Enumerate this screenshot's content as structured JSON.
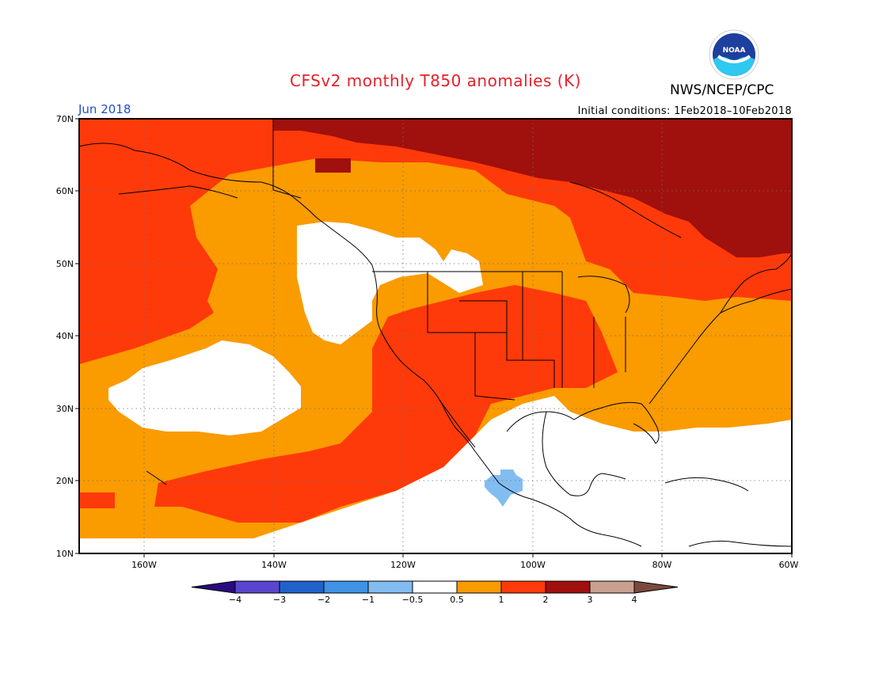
{
  "header": {
    "title": "CFSv2 monthly T850 anomalies (K)",
    "agency": "NWS/NCEP/CPC",
    "period": "Jun 2018",
    "initial_conditions": "Initial conditions: 1Feb2018–10Feb2018",
    "logo_text": "NOAA"
  },
  "axes": {
    "lat_ticks": [
      "70N",
      "60N",
      "50N",
      "40N",
      "30N",
      "20N",
      "10N"
    ],
    "lon_ticks": [
      "160W",
      "140W",
      "120W",
      "100W",
      "80W",
      "60W"
    ]
  },
  "colorbar": {
    "labels": [
      "−4",
      "−3",
      "−2",
      "−1",
      "−0.5",
      "0.5",
      "1",
      "2",
      "3",
      "4"
    ],
    "colors": [
      "#2a0a80",
      "#5a45d0",
      "#1f62cc",
      "#3e93e6",
      "#82bdf2",
      "#ffffff",
      "#fa9b00",
      "#ff3a0a",
      "#a0100c",
      "#c9a090",
      "#7a4a3e"
    ]
  },
  "colors": {
    "white": "#ffffff",
    "orange": "#fa9b00",
    "red_orange": "#ff3a0a",
    "dark_red": "#a0100c",
    "light_blue": "#82bdf2"
  }
}
